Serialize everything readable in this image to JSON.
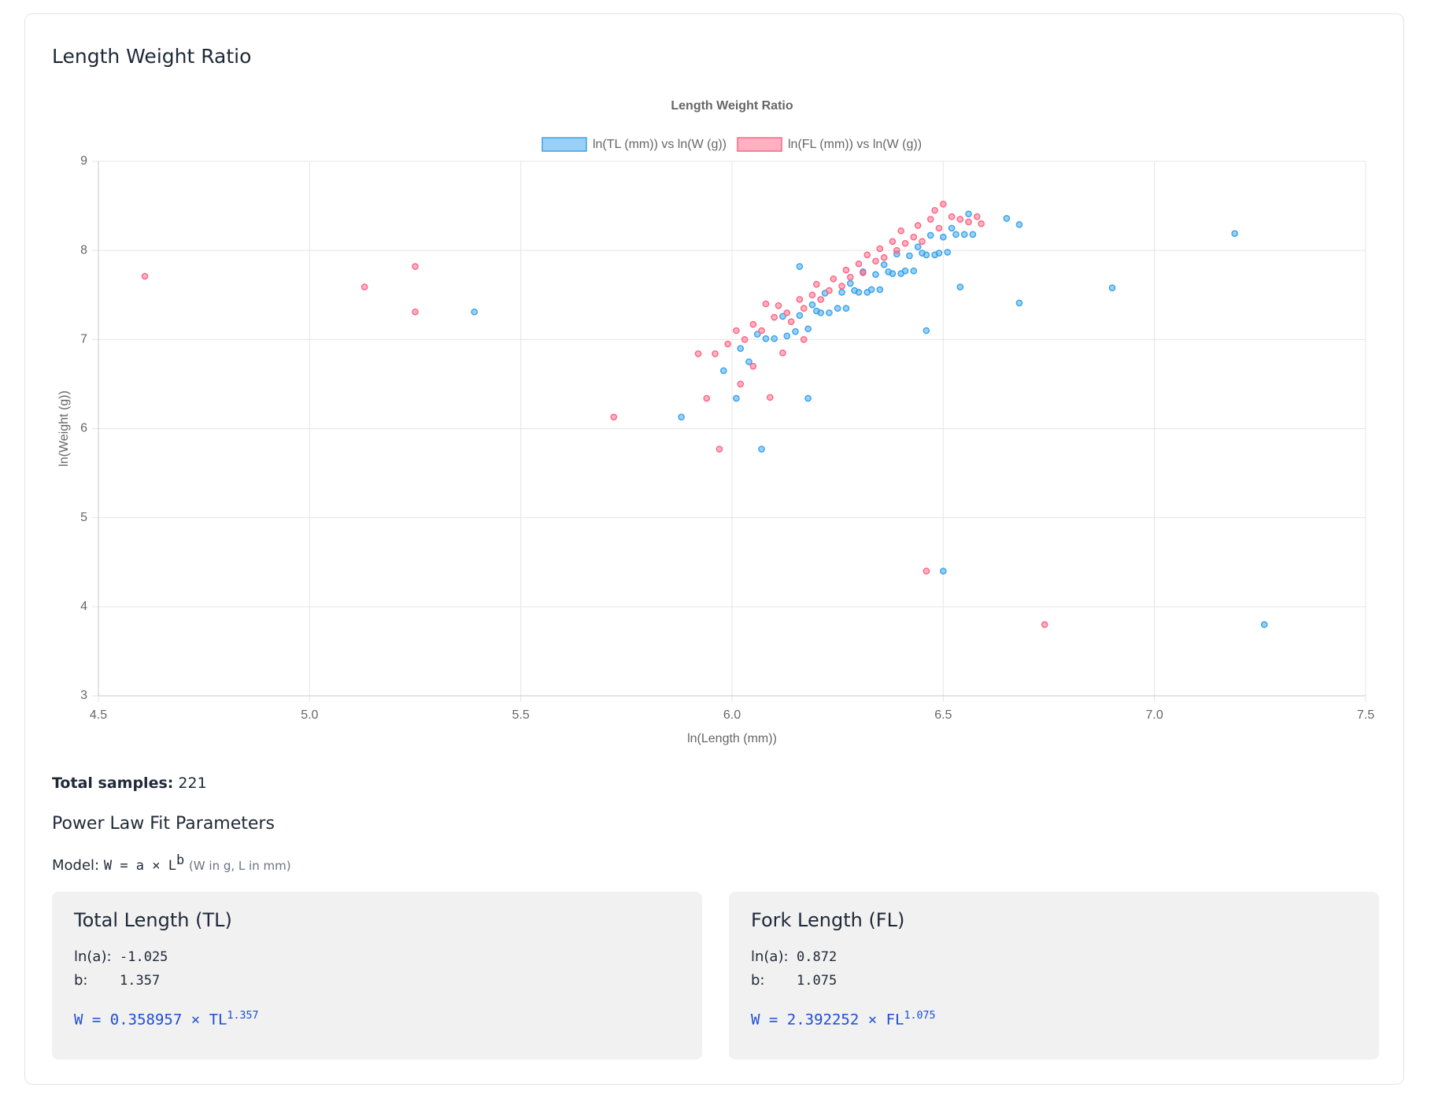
{
  "header": {
    "title": "Length Weight Ratio"
  },
  "chart_data": {
    "type": "scatter",
    "title": "Length Weight Ratio",
    "x_label": "ln(Length (mm))",
    "y_label": "ln(Weight (g))",
    "xlim": [
      4.5,
      7.5
    ],
    "xticks": [
      4.5,
      {
        "value": 5,
        "label": "5.0"
      },
      5.5,
      {
        "value": 6,
        "label": "6.0"
      },
      6.5,
      {
        "value": 7,
        "label": "7.0"
      },
      7.5
    ],
    "ylim": [
      3,
      9
    ],
    "yticks": [
      3,
      4,
      5,
      6,
      7,
      8,
      9
    ],
    "grid": true,
    "legend": "top",
    "series": [
      {
        "name": "ln(TL (mm)) vs ln(W (g))",
        "color": "#36a2eb",
        "x": [
          5.98,
          6.02,
          6.04,
          6.06,
          6.08,
          6.1,
          6.12,
          6.13,
          6.15,
          6.16,
          6.18,
          6.19,
          6.2,
          6.21,
          6.22,
          6.23,
          6.25,
          6.26,
          6.27,
          6.28,
          6.29,
          6.3,
          6.31,
          6.32,
          6.33,
          6.34,
          6.35,
          6.36,
          6.37,
          6.38,
          6.39,
          6.4,
          6.41,
          6.42,
          6.43,
          6.44,
          6.45,
          6.46,
          6.47,
          6.48,
          6.49,
          6.5,
          6.51,
          6.52,
          6.53,
          6.55,
          6.56,
          6.57,
          7.26,
          6.5,
          7.19,
          6.9,
          5.39,
          5.88,
          6.07,
          6.68,
          6.68,
          6.65,
          6.54,
          6.46,
          6.18,
          6.01,
          6.16
        ],
        "values": [
          6.65,
          6.9,
          6.75,
          7.06,
          7.01,
          7.01,
          7.26,
          7.04,
          7.09,
          7.27,
          7.12,
          7.39,
          7.32,
          7.3,
          7.52,
          7.3,
          7.35,
          7.53,
          7.35,
          7.63,
          7.55,
          7.53,
          7.76,
          7.53,
          7.56,
          7.73,
          7.56,
          7.84,
          7.76,
          7.74,
          7.96,
          7.74,
          7.77,
          7.94,
          7.77,
          8.04,
          7.97,
          7.95,
          8.17,
          7.95,
          7.97,
          8.15,
          7.98,
          8.25,
          8.18,
          8.18,
          8.41,
          8.18,
          3.8,
          4.4,
          8.19,
          7.58,
          7.31,
          6.13,
          5.77,
          7.41,
          8.29,
          8.36,
          7.59,
          7.1,
          6.34,
          6.34,
          7.82
        ]
      },
      {
        "name": "ln(FL (mm)) vs ln(W (g))",
        "color": "#ff6384",
        "x": [
          5.92,
          5.96,
          5.99,
          6.01,
          6.03,
          6.05,
          6.07,
          6.08,
          6.1,
          6.11,
          6.13,
          6.14,
          6.16,
          6.17,
          6.19,
          6.2,
          6.21,
          6.23,
          6.24,
          6.26,
          6.27,
          6.28,
          6.3,
          6.31,
          6.32,
          6.34,
          6.35,
          6.36,
          6.38,
          6.39,
          6.4,
          6.41,
          6.43,
          6.44,
          6.45,
          6.47,
          6.48,
          6.49,
          6.5,
          6.52,
          6.54,
          6.56,
          6.58,
          6.59,
          6.02,
          6.05,
          6.12,
          6.17,
          4.61,
          5.13,
          5.25,
          5.25,
          5.72,
          6.74,
          6.46,
          5.97,
          5.94,
          6.09
        ],
        "values": [
          6.84,
          6.84,
          6.95,
          7.1,
          7.0,
          7.17,
          7.1,
          7.4,
          7.25,
          7.38,
          7.3,
          7.2,
          7.45,
          7.35,
          7.5,
          7.62,
          7.45,
          7.55,
          7.68,
          7.6,
          7.78,
          7.7,
          7.85,
          7.75,
          7.95,
          7.88,
          8.02,
          7.92,
          8.1,
          8.0,
          8.22,
          8.08,
          8.15,
          8.28,
          8.1,
          8.35,
          8.45,
          8.25,
          8.52,
          8.38,
          8.35,
          8.32,
          8.38,
          8.3,
          6.5,
          6.7,
          6.85,
          7.0,
          7.71,
          7.59,
          7.82,
          7.31,
          6.13,
          3.8,
          4.4,
          5.77,
          6.34,
          6.35
        ]
      }
    ]
  },
  "summary": {
    "label": "Total samples:",
    "value": "221"
  },
  "fit": {
    "heading": "Power Law Fit Parameters",
    "model_label": "Model:",
    "model_base": "W = a × L",
    "model_exp": "b",
    "model_note": "(W in g, L in mm)",
    "cards": [
      {
        "title": "Total Length (TL)",
        "ln_a_label": "ln(a):",
        "ln_a": "-1.025",
        "b_label": "b:",
        "b": "1.357",
        "formula": "W = 0.358957 × TL",
        "formula_exp": "1.357"
      },
      {
        "title": "Fork Length (FL)",
        "ln_a_label": "ln(a):",
        "ln_a": "0.872",
        "b_label": "b:",
        "b": "1.075",
        "formula": "W = 2.392252 × FL",
        "formula_exp": "1.075"
      }
    ]
  }
}
